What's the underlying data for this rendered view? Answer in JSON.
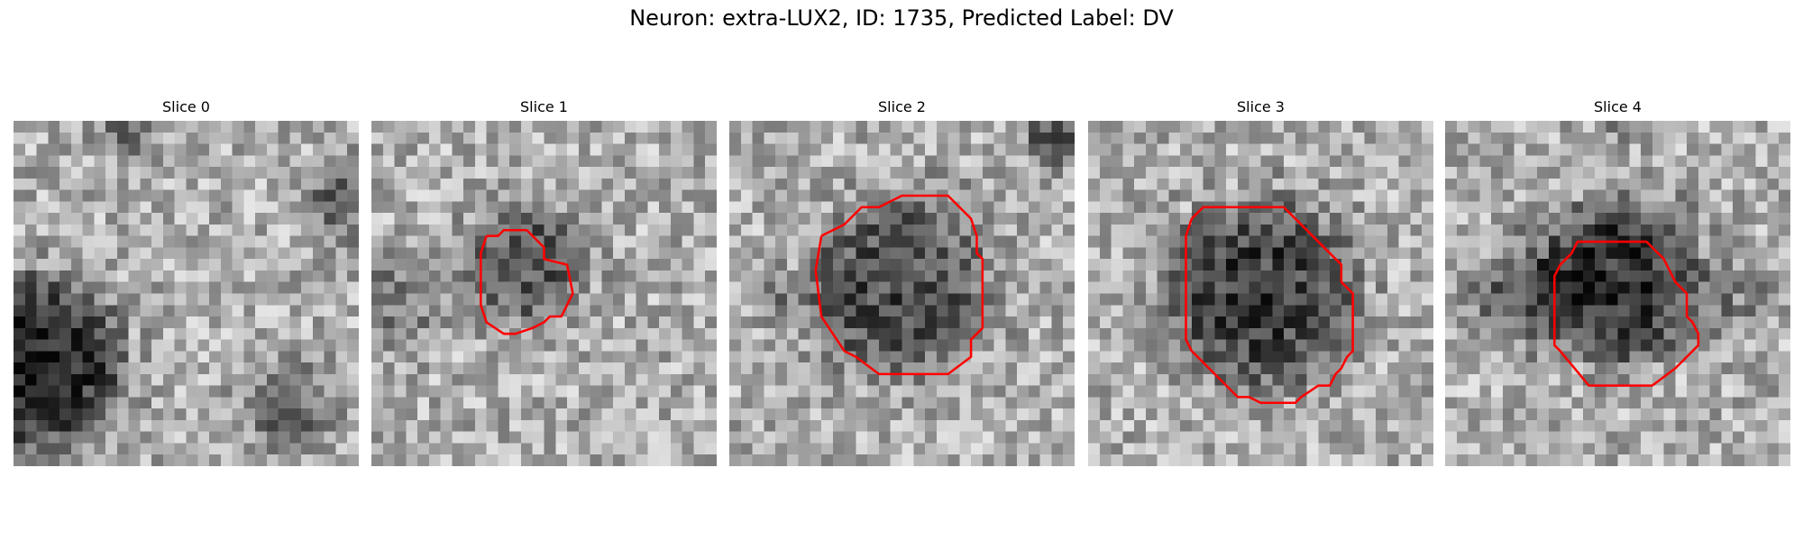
{
  "figure": {
    "title": "Neuron: extra-LUX2, ID: 1735, Predicted Label: DV"
  },
  "grid_size": 30,
  "contour_color": "#ff0000",
  "panels": [
    {
      "title": "Slice 0",
      "seed": 11,
      "dark_blobs": [
        {
          "cx": 2,
          "cy": 21,
          "r": 9,
          "depth": 150
        },
        {
          "cx": 10,
          "cy": 1,
          "r": 2.5,
          "depth": 70
        },
        {
          "cx": 29,
          "cy": 7,
          "r": 4,
          "depth": 70
        },
        {
          "cx": 24,
          "cy": 25,
          "r": 5,
          "depth": 60
        }
      ],
      "contour": []
    },
    {
      "title": "Slice 1",
      "seed": 23,
      "dark_blobs": [
        {
          "cx": 13.5,
          "cy": 12.5,
          "r": 6,
          "depth": 90
        },
        {
          "cx": 2,
          "cy": 16,
          "r": 5,
          "depth": 50
        }
      ],
      "contour": [
        [
          10,
          10
        ],
        [
          11,
          10
        ],
        [
          11.5,
          9.5
        ],
        [
          13.5,
          9.5
        ],
        [
          14.5,
          10.5
        ],
        [
          15,
          11
        ],
        [
          15,
          12
        ],
        [
          17,
          12.5
        ],
        [
          17.5,
          15
        ],
        [
          17,
          16
        ],
        [
          16.5,
          17
        ],
        [
          15.5,
          17
        ],
        [
          15,
          17.5
        ],
        [
          14,
          18
        ],
        [
          12.5,
          18.5
        ],
        [
          11.5,
          18.5
        ],
        [
          10,
          17.5
        ],
        [
          9.5,
          16
        ],
        [
          9.5,
          11.5
        ],
        [
          10,
          10
        ]
      ]
    },
    {
      "title": "Slice 2",
      "seed": 37,
      "dark_blobs": [
        {
          "cx": 14.5,
          "cy": 14.5,
          "r": 9.5,
          "depth": 100
        },
        {
          "cx": 28.5,
          "cy": 1.5,
          "r": 3,
          "depth": 110
        },
        {
          "cx": 4,
          "cy": 15,
          "r": 3,
          "depth": 40
        }
      ],
      "contour": [
        [
          8,
          10
        ],
        [
          9,
          9.5
        ],
        [
          10,
          9
        ],
        [
          10.5,
          8.5
        ],
        [
          11.5,
          7.5
        ],
        [
          13,
          7.5
        ],
        [
          15,
          6.5
        ],
        [
          19,
          6.5
        ],
        [
          21,
          8.5
        ],
        [
          21.5,
          10
        ],
        [
          21.5,
          11.5
        ],
        [
          22,
          12
        ],
        [
          22,
          18
        ],
        [
          21.5,
          18.5
        ],
        [
          21,
          19
        ],
        [
          21,
          20.5
        ],
        [
          19,
          22
        ],
        [
          17,
          22
        ],
        [
          16.5,
          22
        ],
        [
          13,
          22
        ],
        [
          11,
          20.5
        ],
        [
          10,
          20
        ],
        [
          9,
          18.5
        ],
        [
          8,
          17
        ],
        [
          7.5,
          13
        ],
        [
          8,
          10
        ]
      ]
    },
    {
      "title": "Slice 3",
      "seed": 53,
      "dark_blobs": [
        {
          "cx": 15,
          "cy": 15,
          "r": 10,
          "depth": 115
        }
      ],
      "contour": [
        [
          9,
          8.5
        ],
        [
          10,
          7.5
        ],
        [
          17,
          7.5
        ],
        [
          19,
          9.5
        ],
        [
          19.5,
          10
        ],
        [
          20.5,
          11
        ],
        [
          22,
          12.5
        ],
        [
          22,
          14
        ],
        [
          23,
          15
        ],
        [
          23,
          20
        ],
        [
          22.5,
          20.5
        ],
        [
          22,
          21.5
        ],
        [
          21.5,
          22
        ],
        [
          21,
          23
        ],
        [
          20,
          23
        ],
        [
          18.5,
          24
        ],
        [
          18,
          24.5
        ],
        [
          15,
          24.5
        ],
        [
          14,
          24
        ],
        [
          13,
          24
        ],
        [
          12,
          23
        ],
        [
          11,
          22
        ],
        [
          9,
          20
        ],
        [
          8.5,
          19
        ],
        [
          8.5,
          10
        ],
        [
          9,
          8.5
        ]
      ]
    },
    {
      "title": "Slice 4",
      "seed": 71,
      "dark_blobs": [
        {
          "cx": 15,
          "cy": 14,
          "r": 8.5,
          "depth": 130
        },
        {
          "cx": 6,
          "cy": 15,
          "r": 4.5,
          "depth": 80
        },
        {
          "cx": 15,
          "cy": 0,
          "r": 2,
          "depth": 50
        },
        {
          "cx": 25,
          "cy": 15,
          "r": 4,
          "depth": 40
        }
      ],
      "contour": [
        [
          10,
          12.5
        ],
        [
          11,
          11.5
        ],
        [
          11.5,
          10.5
        ],
        [
          17.5,
          10.5
        ],
        [
          19,
          12
        ],
        [
          20,
          14
        ],
        [
          21,
          15
        ],
        [
          21,
          17
        ],
        [
          21.5,
          17.5
        ],
        [
          22,
          18.5
        ],
        [
          22,
          19.5
        ],
        [
          21,
          20.5
        ],
        [
          20,
          21.5
        ],
        [
          18,
          23
        ],
        [
          12.5,
          23
        ],
        [
          10,
          20
        ],
        [
          9.5,
          19.5
        ],
        [
          9.5,
          13.5
        ],
        [
          10,
          12.5
        ]
      ]
    }
  ]
}
